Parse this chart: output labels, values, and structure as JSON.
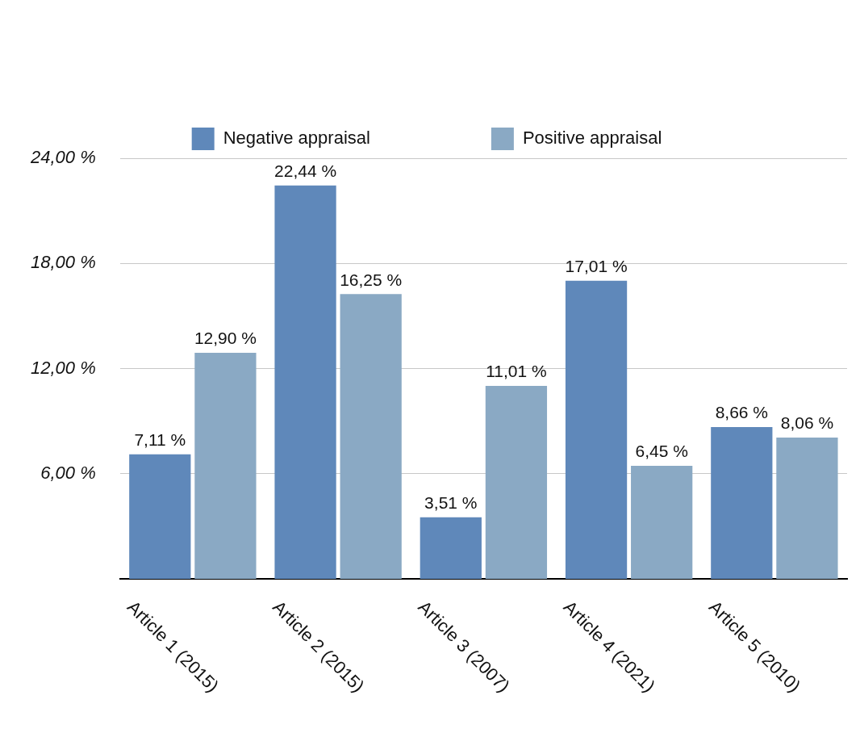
{
  "chart_data": {
    "type": "bar",
    "categories": [
      "Article 1 (2015)",
      "Article 2 (2015)",
      "Article 3 (2007)",
      "Article 4 (2021)",
      "Article 5 (2010)"
    ],
    "series": [
      {
        "name": "Negative appraisal",
        "color": "#5f88ba",
        "values": [
          7.11,
          22.44,
          3.51,
          17.01,
          8.66
        ],
        "value_labels": [
          "7,11 %",
          "22,44 %",
          "3,51 %",
          "17,01 %",
          "8,66 %"
        ]
      },
      {
        "name": "Positive appraisal",
        "color": "#8aa9c4",
        "values": [
          12.9,
          16.25,
          11.01,
          6.45,
          8.06
        ],
        "value_labels": [
          "12,90 %",
          "16,25 %",
          "11,01 %",
          "6,45 %",
          "8,06 %"
        ]
      }
    ],
    "ylim": [
      0,
      24
    ],
    "yticks": [
      {
        "value": 6,
        "label": "6,00 %"
      },
      {
        "value": 12,
        "label": "12,00 %"
      },
      {
        "value": 18,
        "label": "18,00 %"
      },
      {
        "value": 24,
        "label": "24,00 %"
      }
    ],
    "grid": "y",
    "legend": "top"
  }
}
